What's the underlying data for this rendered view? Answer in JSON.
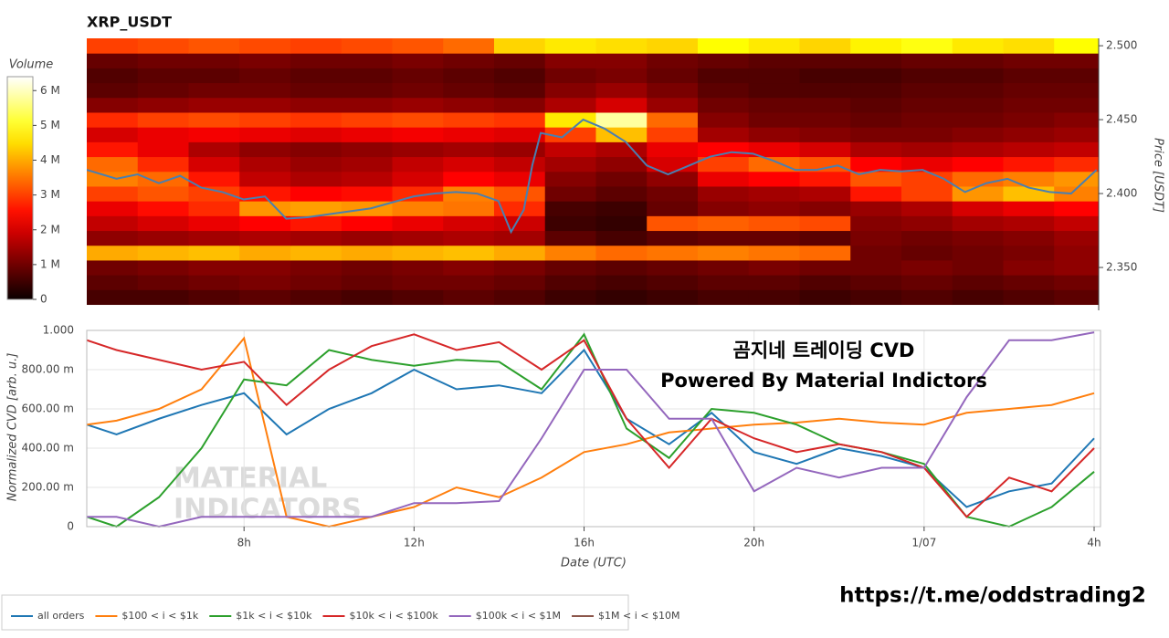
{
  "chart_data": [
    {
      "type": "heatmap",
      "title": "XRP_USDT",
      "y_label": "Price [USDT]",
      "colorbar_title": "Volume",
      "zlim": [
        0,
        6.4
      ],
      "colorbar_ticks": [
        0,
        {
          "value": 1,
          "label": "1 M"
        },
        {
          "value": 2,
          "label": "2 M"
        },
        {
          "value": 3,
          "label": "3 M"
        },
        {
          "value": 4,
          "label": "4 M"
        },
        {
          "value": 5,
          "label": "5 M"
        },
        {
          "value": 6,
          "label": "6 M"
        }
      ],
      "xlim": [
        4.3,
        28.15
      ],
      "ylim": [
        2.321,
        2.505
      ],
      "yticks": [
        {
          "value": 2.35,
          "label": "2.350"
        },
        {
          "value": 2.4,
          "label": "2.400"
        },
        {
          "value": 2.45,
          "label": "2.450"
        },
        {
          "value": 2.5,
          "label": "2.500"
        }
      ],
      "x_bins": [
        4.3,
        5.5,
        6.7,
        7.9,
        9.1,
        10.3,
        11.5,
        12.7,
        13.9,
        15.1,
        16.3,
        17.5,
        18.7,
        19.9,
        21.1,
        22.3,
        23.5,
        24.7,
        25.9,
        27.1,
        28.3
      ],
      "y_bins": [
        2.325,
        2.335,
        2.345,
        2.355,
        2.365,
        2.375,
        2.385,
        2.395,
        2.405,
        2.415,
        2.425,
        2.435,
        2.445,
        2.455,
        2.465,
        2.475,
        2.485,
        2.495,
        2.505
      ],
      "z": [
        [
          0.6,
          0.6,
          0.7,
          0.8,
          0.7,
          0.6,
          0.7,
          0.8,
          0.7,
          0.5,
          0.4,
          0.5,
          0.6,
          0.6,
          0.5,
          0.6,
          0.7,
          0.6,
          0.7,
          0.8
        ],
        [
          0.8,
          0.9,
          1.0,
          1.1,
          1.0,
          0.9,
          1.0,
          1.0,
          0.9,
          0.7,
          0.6,
          0.7,
          0.8,
          0.8,
          0.7,
          0.8,
          0.9,
          0.8,
          0.9,
          1.0
        ],
        [
          1.0,
          1.1,
          1.2,
          1.2,
          1.1,
          1.0,
          1.1,
          1.2,
          1.1,
          0.9,
          0.8,
          0.9,
          1.0,
          1.1,
          1.0,
          1.0,
          1.1,
          1.0,
          1.2,
          1.3
        ],
        [
          4.0,
          4.1,
          4.2,
          4.0,
          4.1,
          4.0,
          4.1,
          4.2,
          4.0,
          3.6,
          3.4,
          3.5,
          3.6,
          3.5,
          3.4,
          1.0,
          0.9,
          1.0,
          1.1,
          1.3
        ],
        [
          1.3,
          1.4,
          1.5,
          1.6,
          1.5,
          1.4,
          1.5,
          1.6,
          1.5,
          0.8,
          0.6,
          0.8,
          0.9,
          0.9,
          0.8,
          1.1,
          1.0,
          1.1,
          1.2,
          1.4
        ],
        [
          1.8,
          2.0,
          2.2,
          2.4,
          2.6,
          2.4,
          2.2,
          2.0,
          1.9,
          0.5,
          0.4,
          3.2,
          3.3,
          3.2,
          3.1,
          1.2,
          1.3,
          1.5,
          1.6,
          1.8
        ],
        [
          2.2,
          2.5,
          2.8,
          3.8,
          3.9,
          3.8,
          3.6,
          3.5,
          2.8,
          0.6,
          0.5,
          0.9,
          1.2,
          1.3,
          1.2,
          1.4,
          1.6,
          2.0,
          2.2,
          2.4
        ],
        [
          3.0,
          3.2,
          3.0,
          2.6,
          2.4,
          2.5,
          2.8,
          3.6,
          3.2,
          1.0,
          0.8,
          1.0,
          1.4,
          1.5,
          1.6,
          2.6,
          3.0,
          3.8,
          4.2,
          3.6
        ],
        [
          3.6,
          3.4,
          2.6,
          1.8,
          1.6,
          1.7,
          2.0,
          2.4,
          2.2,
          1.2,
          1.0,
          1.3,
          2.2,
          2.4,
          2.6,
          3.2,
          3.0,
          3.4,
          3.6,
          3.8
        ],
        [
          3.4,
          2.8,
          2.0,
          1.6,
          1.4,
          1.5,
          1.8,
          2.0,
          1.8,
          1.5,
          1.3,
          2.0,
          3.0,
          3.4,
          3.2,
          2.4,
          2.2,
          2.4,
          2.6,
          2.8
        ],
        [
          2.6,
          2.2,
          1.6,
          1.3,
          1.2,
          1.3,
          1.4,
          1.5,
          1.4,
          1.8,
          1.6,
          2.2,
          2.4,
          2.2,
          2.0,
          1.6,
          1.5,
          1.6,
          1.7,
          1.8
        ],
        [
          2.0,
          2.2,
          2.3,
          2.2,
          2.1,
          2.2,
          2.3,
          2.2,
          2.1,
          3.0,
          4.2,
          3.0,
          1.5,
          1.3,
          1.2,
          1.1,
          1.1,
          1.2,
          1.3,
          1.4
        ],
        [
          2.8,
          3.0,
          3.1,
          3.0,
          2.9,
          3.0,
          3.1,
          3.0,
          2.9,
          4.6,
          5.8,
          3.4,
          1.2,
          1.0,
          1.0,
          0.9,
          1.0,
          1.0,
          1.1,
          1.2
        ],
        [
          1.2,
          1.3,
          1.4,
          1.4,
          1.3,
          1.3,
          1.4,
          1.3,
          1.2,
          1.6,
          2.0,
          1.4,
          1.0,
          0.9,
          0.9,
          0.8,
          0.9,
          0.9,
          1.0,
          1.0
        ],
        [
          0.8,
          0.9,
          1.0,
          1.0,
          0.9,
          0.9,
          1.0,
          0.9,
          0.8,
          1.2,
          1.4,
          1.1,
          0.8,
          0.7,
          0.7,
          0.7,
          0.8,
          0.8,
          0.9,
          0.9
        ],
        [
          0.7,
          0.8,
          0.8,
          0.9,
          0.8,
          0.8,
          0.9,
          0.8,
          0.7,
          1.0,
          1.1,
          0.9,
          0.7,
          0.7,
          0.6,
          0.6,
          0.7,
          0.7,
          0.8,
          0.8
        ],
        [
          0.9,
          1.0,
          1.0,
          1.1,
          1.0,
          1.0,
          1.1,
          1.0,
          0.9,
          1.2,
          1.2,
          1.0,
          0.9,
          0.8,
          0.8,
          0.8,
          0.9,
          0.9,
          1.0,
          1.0
        ],
        [
          3.0,
          3.1,
          3.2,
          3.1,
          3.0,
          3.1,
          3.2,
          3.4,
          4.4,
          4.6,
          4.5,
          4.4,
          4.8,
          4.6,
          4.4,
          4.7,
          4.9,
          4.6,
          4.5,
          4.8
        ]
      ],
      "line": {
        "color": "#4a7fb0",
        "x": [
          4.3,
          5,
          5.5,
          6,
          6.5,
          7,
          7.5,
          8,
          8.5,
          9,
          9.5,
          10,
          10.5,
          11,
          11.5,
          12,
          12.5,
          13,
          13.5,
          14,
          14.3,
          14.6,
          14.8,
          15,
          15.5,
          16,
          16.5,
          17,
          17.5,
          18,
          18.5,
          19,
          19.5,
          20,
          20.5,
          21,
          21.5,
          22,
          22.5,
          23,
          23.5,
          24,
          24.5,
          25,
          25.5,
          26,
          26.5,
          27,
          27.5,
          28.1
        ],
        "values": [
          2.416,
          2.41,
          2.413,
          2.407,
          2.412,
          2.404,
          2.401,
          2.396,
          2.398,
          2.383,
          2.384,
          2.386,
          2.388,
          2.39,
          2.394,
          2.398,
          2.4,
          2.401,
          2.4,
          2.395,
          2.374,
          2.389,
          2.419,
          2.441,
          2.438,
          2.45,
          2.444,
          2.435,
          2.419,
          2.413,
          2.419,
          2.425,
          2.428,
          2.427,
          2.422,
          2.416,
          2.416,
          2.419,
          2.413,
          2.416,
          2.415,
          2.416,
          2.41,
          2.401,
          2.407,
          2.41,
          2.404,
          2.401,
          2.4,
          2.416
        ]
      }
    },
    {
      "type": "line",
      "x_label": "Date (UTC)",
      "y_label": "Normalized CVD [arb. u.]",
      "xlim": [
        4.3,
        28.15
      ],
      "xticks": [
        {
          "value": 8,
          "label": "8h"
        },
        {
          "value": 12,
          "label": "12h"
        },
        {
          "value": 16,
          "label": "16h"
        },
        {
          "value": 20,
          "label": "20h"
        },
        {
          "value": 24,
          "label": "1/07"
        },
        {
          "value": 28,
          "label": "4h"
        }
      ],
      "ylim": [
        0,
        1
      ],
      "yticks": [
        0,
        {
          "value": 0.2,
          "label": "200.00 m"
        },
        {
          "value": 0.4,
          "label": "400.00 m"
        },
        {
          "value": 0.6,
          "label": "600.00 m"
        },
        {
          "value": 0.8,
          "label": "800.00 m"
        },
        {
          "value": 1,
          "label": "1.000"
        }
      ],
      "grid": true,
      "legend": "bottom",
      "annotation": [
        "곰지네 트레이딩 CVD",
        "Powered By Material Indictors"
      ],
      "watermark": [
        "MATERIAL",
        "INDICATORS"
      ],
      "x": [
        4.3,
        5,
        6,
        7,
        8,
        9,
        10,
        11,
        12,
        13,
        14,
        15,
        16,
        17,
        18,
        19,
        20,
        21,
        22,
        23,
        24,
        25,
        26,
        27,
        28
      ],
      "series": [
        {
          "name": "all orders",
          "color": "#1f77b4",
          "values": [
            0.52,
            0.47,
            0.55,
            0.62,
            0.68,
            0.47,
            0.6,
            0.68,
            0.8,
            0.7,
            0.72,
            0.68,
            0.9,
            0.55,
            0.42,
            0.58,
            0.38,
            0.32,
            0.4,
            0.36,
            0.3,
            0.1,
            0.18,
            0.22,
            0.45
          ]
        },
        {
          "name": "$100 < i < $1k",
          "color": "#ff7f0e",
          "values": [
            0.52,
            0.54,
            0.6,
            0.7,
            0.96,
            0.05,
            0,
            0.05,
            0.1,
            0.2,
            0.15,
            0.25,
            0.38,
            0.42,
            0.48,
            0.5,
            0.52,
            0.53,
            0.55,
            0.53,
            0.52,
            0.58,
            0.6,
            0.62,
            0.68
          ]
        },
        {
          "name": "$1k < i < $10k",
          "color": "#2ca02c",
          "values": [
            0.05,
            0,
            0.15,
            0.4,
            0.75,
            0.72,
            0.9,
            0.85,
            0.82,
            0.85,
            0.84,
            0.7,
            0.98,
            0.5,
            0.35,
            0.6,
            0.58,
            0.52,
            0.42,
            0.38,
            0.32,
            0.05,
            0,
            0.1,
            0.28
          ]
        },
        {
          "name": "$10k < i < $100k",
          "color": "#d62728",
          "values": [
            0.95,
            0.9,
            0.85,
            0.8,
            0.84,
            0.62,
            0.8,
            0.92,
            0.98,
            0.9,
            0.94,
            0.8,
            0.95,
            0.55,
            0.3,
            0.55,
            0.45,
            0.38,
            0.42,
            0.38,
            0.3,
            0.05,
            0.25,
            0.18,
            0.4
          ]
        },
        {
          "name": "$100k < i < $1M",
          "color": "#9467bd",
          "values": [
            0.05,
            0.05,
            0,
            0.05,
            0.05,
            0.05,
            0.05,
            0.05,
            0.12,
            0.12,
            0.13,
            0.45,
            0.8,
            0.8,
            0.55,
            0.55,
            0.18,
            0.3,
            0.25,
            0.3,
            0.3,
            0.66,
            0.95,
            0.95,
            0.99
          ]
        },
        {
          "name": "$1M < i < $10M",
          "color": "#8c564b",
          "values": [
            null,
            null,
            null,
            null,
            null,
            null,
            null,
            null,
            null,
            null,
            null,
            null,
            null,
            null,
            null,
            null,
            null,
            null,
            null,
            null,
            null,
            null,
            null,
            null,
            null
          ]
        }
      ]
    }
  ],
  "link": "https://t.me/oddstrading2"
}
